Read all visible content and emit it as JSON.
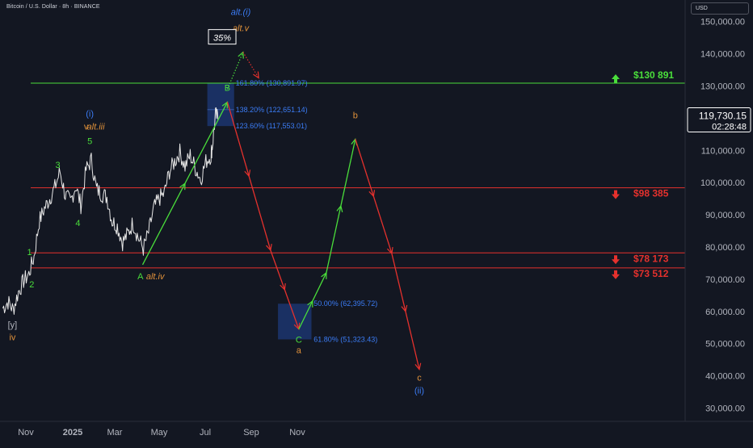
{
  "header": {
    "title": "Bitcoin / U.S. Dollar · 8h · BINANCE"
  },
  "price_axis": {
    "currency": "USD"
  },
  "current_price": {
    "value": "119,730.15",
    "countdown": "02:28:48"
  },
  "colors": {
    "background": "#131722",
    "resistance": "#4ade3b",
    "support": "#e5312d",
    "wave_green": "#4ade3b",
    "wave_blue": "#3b7cf5",
    "wave_orange": "#e0913a",
    "box_fill": "#1e3a7a",
    "fib_text": "#3b7cf5",
    "axis_text": "#b2b5be"
  },
  "chart_data": {
    "type": "line",
    "title": "Bitcoin / U.S. Dollar · 8h · BINANCE",
    "xlabel": "",
    "ylabel": "",
    "ylim": [
      25000,
      162000
    ],
    "grid": false,
    "x_ticks": [
      "Nov",
      "2025",
      "Mar",
      "May",
      "Jul",
      "Sep",
      "Nov"
    ],
    "y_ticks": [
      30000,
      40000,
      50000,
      60000,
      70000,
      80000,
      90000,
      100000,
      110000,
      120000,
      130000,
      140000,
      150000
    ],
    "y_tick_labels": [
      "30,000.00",
      "40,000.00",
      "50,000.00",
      "60,000.00",
      "70,000.00",
      "80,000.00",
      "90,000.00",
      "100,000.00",
      "110,000.00",
      "120,000.00",
      "130,000.00",
      "140,000.00",
      "150,000.00"
    ],
    "price_series": [
      [
        "2024-10-01",
        61000
      ],
      [
        "2024-10-08",
        63000
      ],
      [
        "2024-10-15",
        60500
      ],
      [
        "2024-10-22",
        66000
      ],
      [
        "2024-10-29",
        69500
      ],
      [
        "2024-11-05",
        71500
      ],
      [
        "2024-11-12",
        77000
      ],
      [
        "2024-11-19",
        88000
      ],
      [
        "2024-11-26",
        92000
      ],
      [
        "2024-12-03",
        95000
      ],
      [
        "2024-12-10",
        98500
      ],
      [
        "2024-12-17",
        103500
      ],
      [
        "2024-12-24",
        96000
      ],
      [
        "2024-12-31",
        94000
      ],
      [
        "2025-01-07",
        99000
      ],
      [
        "2025-01-14",
        93000
      ],
      [
        "2025-01-21",
        104000
      ],
      [
        "2025-01-28",
        107000
      ],
      [
        "2025-02-04",
        98000
      ],
      [
        "2025-02-11",
        96500
      ],
      [
        "2025-02-18",
        95500
      ],
      [
        "2025-02-25",
        88000
      ],
      [
        "2025-03-04",
        86500
      ],
      [
        "2025-03-11",
        81500
      ],
      [
        "2025-03-18",
        84000
      ],
      [
        "2025-03-25",
        87500
      ],
      [
        "2025-04-01",
        83000
      ],
      [
        "2025-04-08",
        79500
      ],
      [
        "2025-04-15",
        84500
      ],
      [
        "2025-04-22",
        92000
      ],
      [
        "2025-04-29",
        95000
      ],
      [
        "2025-05-06",
        96500
      ],
      [
        "2025-05-13",
        103500
      ],
      [
        "2025-05-20",
        106500
      ],
      [
        "2025-05-27",
        109500
      ],
      [
        "2025-06-03",
        105000
      ],
      [
        "2025-06-10",
        108500
      ],
      [
        "2025-06-17",
        104500
      ],
      [
        "2025-06-24",
        101000
      ],
      [
        "2025-07-01",
        106500
      ],
      [
        "2025-07-08",
        108500
      ],
      [
        "2025-07-10",
        112000
      ],
      [
        "2025-07-14",
        121000
      ],
      [
        "2025-07-18",
        119730
      ]
    ],
    "horizontal_levels": [
      {
        "price": 130891,
        "label": "$130 891",
        "color": "#4ade3b",
        "arrow": "up"
      },
      {
        "price": 98385,
        "label": "$98 385",
        "color": "#e5312d",
        "arrow": "down"
      },
      {
        "price": 78173,
        "label": "$78 173",
        "color": "#e5312d",
        "arrow": "down"
      },
      {
        "price": 73512,
        "label": "$73 512",
        "color": "#e5312d",
        "arrow": "down"
      }
    ],
    "fib_boxes": [
      {
        "x0": "2025-07-03",
        "x1": "2025-08-08",
        "y0": 117553,
        "y1": 130891
      },
      {
        "x0": "2025-10-06",
        "x1": "2025-11-20",
        "y0": 51323,
        "y1": 62396
      }
    ],
    "fib_labels": [
      {
        "x": "2025-08-10",
        "y": 130891,
        "text": "161.80% (130,891.97)"
      },
      {
        "x": "2025-08-10",
        "y": 122651,
        "text": "138.20% (122,651.14)"
      },
      {
        "x": "2025-08-10",
        "y": 117553,
        "text": "123.60% (117,553.01)"
      },
      {
        "x": "2025-11-23",
        "y": 62396,
        "text": "50.00% (62,395.72)"
      },
      {
        "x": "2025-11-23",
        "y": 51323,
        "text": "61.80% (51,323.43)"
      }
    ],
    "projection_paths": [
      {
        "color": "#4ade3b",
        "points": [
          [
            "2025-04-07",
            74500
          ],
          [
            "2025-07-30",
            125000
          ]
        ]
      },
      {
        "color": "#e5312d",
        "points": [
          [
            "2025-07-30",
            125000
          ],
          [
            "2025-09-26",
            79000
          ],
          [
            "2025-11-03",
            54500
          ]
        ]
      },
      {
        "color": "#4ade3b",
        "points": [
          [
            "2025-11-03",
            54500
          ],
          [
            "2025-12-10",
            72000
          ],
          [
            "2026-01-18",
            113500
          ]
        ]
      },
      {
        "color": "#e5312d",
        "points": [
          [
            "2026-01-18",
            113500
          ],
          [
            "2026-03-08",
            78000
          ],
          [
            "2026-04-14",
            42000
          ]
        ]
      }
    ],
    "dotted_paths": [
      {
        "color": "#4ade3b",
        "points": [
          [
            "2025-07-30",
            129000
          ],
          [
            "2025-08-20",
            140500
          ]
        ]
      },
      {
        "color": "#e5312d",
        "points": [
          [
            "2025-08-20",
            140500
          ],
          [
            "2025-09-10",
            132500
          ]
        ]
      }
    ],
    "wave_labels": [
      {
        "text": "1",
        "x": "2024-11-06",
        "y": 77500,
        "color": "#4ade3b"
      },
      {
        "text": "2",
        "x": "2024-11-09",
        "y": 67500,
        "color": "#4ade3b"
      },
      {
        "text": "3",
        "x": "2024-12-14",
        "y": 104500,
        "color": "#4ade3b"
      },
      {
        "text": "4",
        "x": "2025-01-10",
        "y": 86500,
        "color": "#4ade3b"
      },
      {
        "text": "5",
        "x": "2025-01-26",
        "y": 112000,
        "color": "#4ade3b"
      },
      {
        "text": "(i)",
        "x": "2025-01-26",
        "y": 120500,
        "color": "#3b7cf5"
      },
      {
        "text": "v",
        "x": "2025-01-21",
        "y": 116500,
        "color": "#e0913a"
      },
      {
        "text": "alt.iii",
        "x": "2025-02-03",
        "y": 116500,
        "color": "#e0913a",
        "italic": true
      },
      {
        "text": "A",
        "x": "2025-04-04",
        "y": 70000,
        "color": "#4ade3b"
      },
      {
        "text": "alt.iv",
        "x": "2025-04-24",
        "y": 70000,
        "color": "#e0913a",
        "italic": true
      },
      {
        "text": "B",
        "x": "2025-07-30",
        "y": 128500,
        "color": "#4ade3b"
      },
      {
        "text": "alt.(i)",
        "x": "2025-08-17",
        "y": 152000,
        "color": "#3b7cf5",
        "italic": true
      },
      {
        "text": "alt.v",
        "x": "2025-08-17",
        "y": 147000,
        "color": "#e0913a",
        "italic": true
      },
      {
        "text": "C",
        "x": "2025-11-03",
        "y": 50300,
        "color": "#4ade3b"
      },
      {
        "text": "a",
        "x": "2025-11-03",
        "y": 47000,
        "color": "#e0913a"
      },
      {
        "text": "b",
        "x": "2026-01-18",
        "y": 120000,
        "color": "#e0913a"
      },
      {
        "text": "c",
        "x": "2026-04-14",
        "y": 38500,
        "color": "#e0913a"
      },
      {
        "text": "(ii)",
        "x": "2026-04-14",
        "y": 34500,
        "color": "#3b7cf5"
      },
      {
        "text": "[y]",
        "x": "2024-10-14",
        "y": 55000,
        "color": "#b2b5be"
      },
      {
        "text": "iv",
        "x": "2024-10-14",
        "y": 51000,
        "color": "#e0913a"
      }
    ],
    "boxed_label": {
      "text": "35%",
      "x": "2025-07-23",
      "y": 145000
    }
  }
}
